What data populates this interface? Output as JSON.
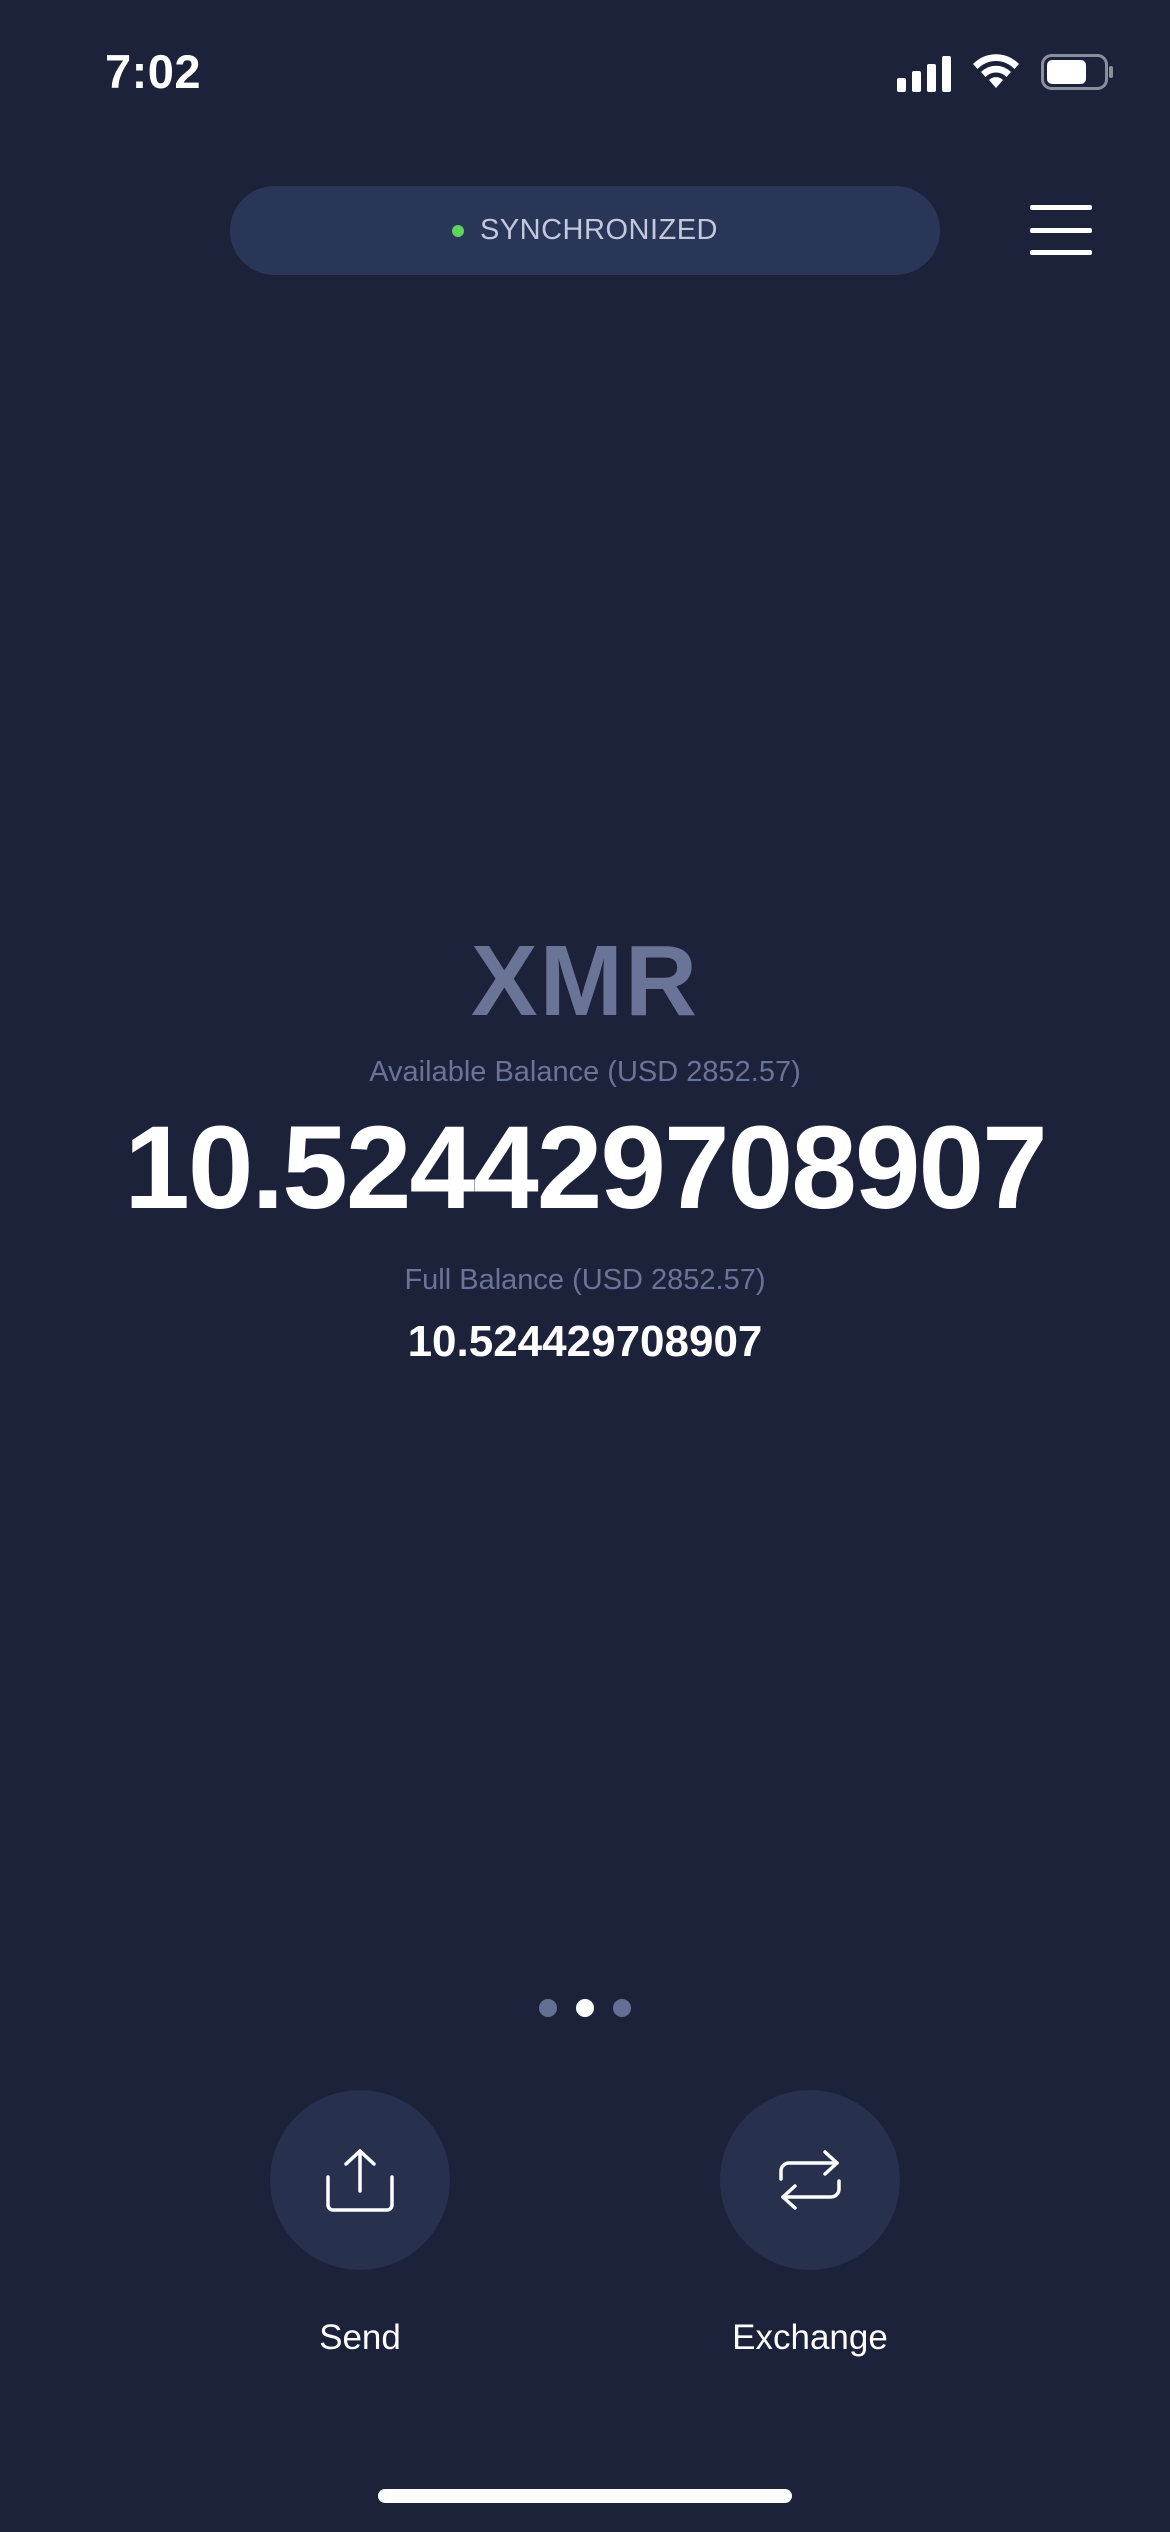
{
  "status_bar": {
    "time": "7:02",
    "icons": [
      "signal-icon",
      "wifi-icon",
      "battery-icon"
    ],
    "battery_level": 0.7
  },
  "header": {
    "sync_status": "SYNCHRONIZED",
    "sync_dot_color": "#5fd35b",
    "menu_icon": "hamburger-menu-icon"
  },
  "balance": {
    "currency": "XMR",
    "available_label": "Available Balance (USD 2852.57)",
    "available_amount": "10.524429708907",
    "full_label": "Full Balance (USD 2852.57)",
    "full_amount": "10.524429708907"
  },
  "pager": {
    "count": 3,
    "active_index": 1
  },
  "actions": {
    "send": {
      "label": "Send",
      "icon": "upload-icon"
    },
    "exchange": {
      "label": "Exchange",
      "icon": "exchange-arrows-icon"
    }
  },
  "colors": {
    "background": "#1b223a",
    "pill": "#2a3657",
    "muted_text": "#6a7497",
    "action_circle": "#27304d",
    "accent_green": "#5fd35b"
  }
}
